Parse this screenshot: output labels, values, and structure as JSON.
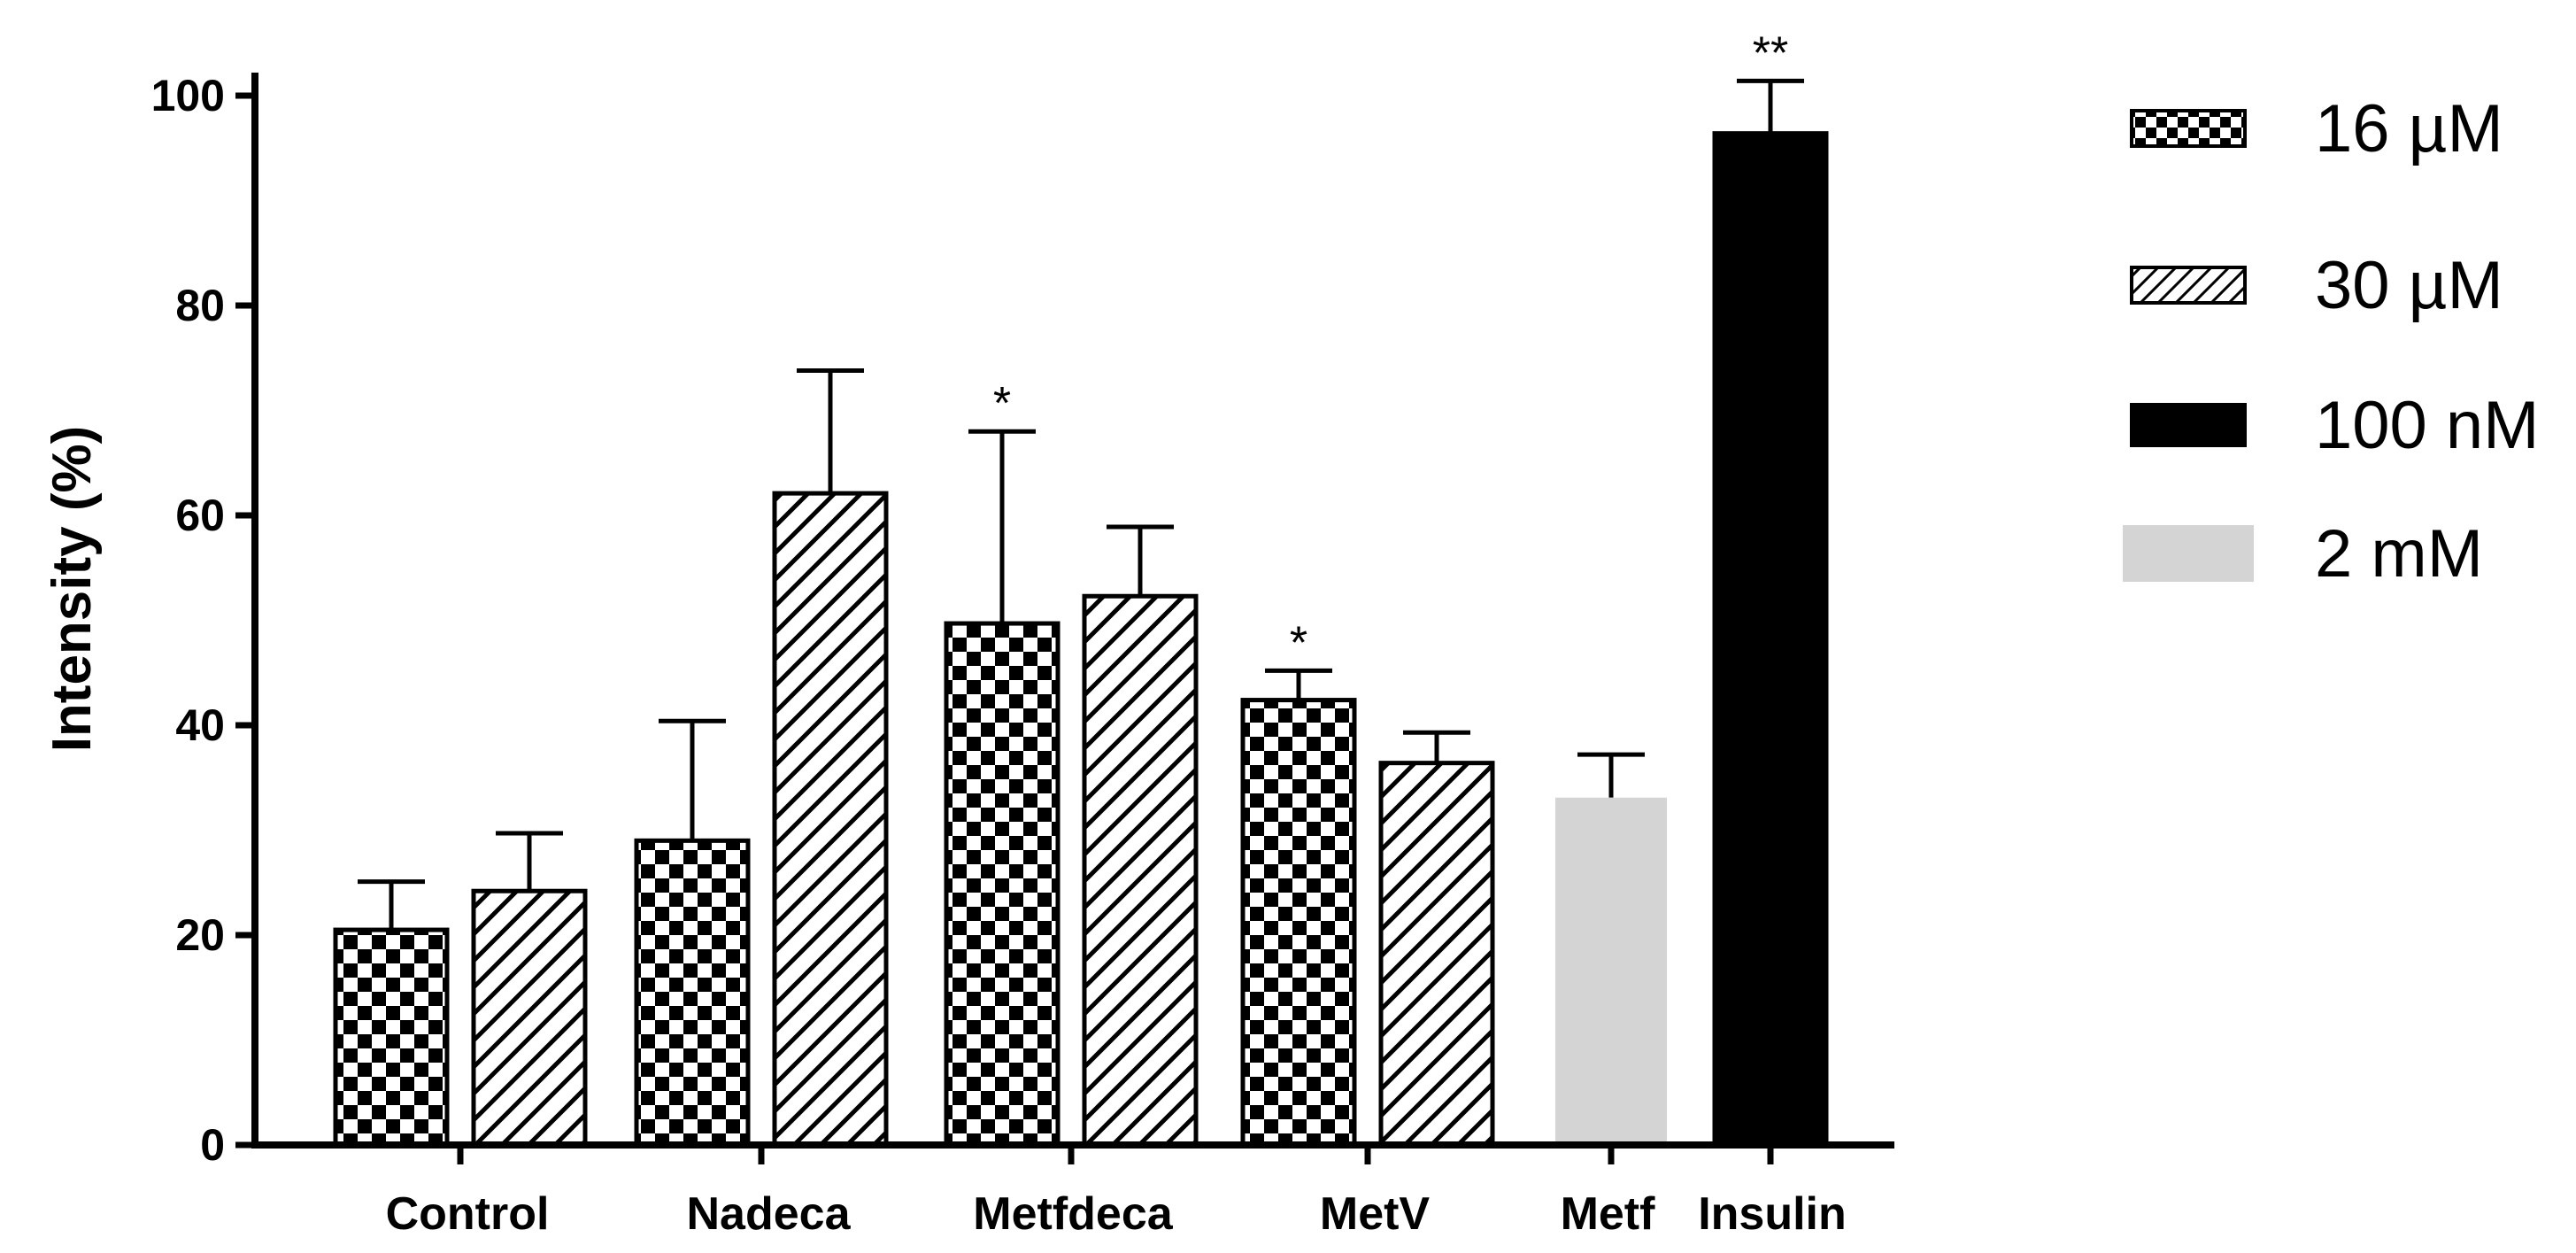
{
  "chart_data": {
    "type": "bar",
    "title": "",
    "xlabel": "",
    "ylabel": "Intensity (%)",
    "ylim": [
      0,
      100
    ],
    "yticks": [
      0,
      20,
      40,
      60,
      80,
      100
    ],
    "ytick_labels": [
      "0",
      "20",
      "40",
      "60",
      "80",
      "100"
    ],
    "grid": false,
    "legend_position": "right",
    "groups": [
      {
        "label": "Control",
        "bars": [
          {
            "series": "16 µM",
            "value": 20.5,
            "error": 4.6,
            "sig": ""
          },
          {
            "series": "30 µM",
            "value": 24.2,
            "error": 5.5,
            "sig": ""
          }
        ]
      },
      {
        "label": "Nadeca",
        "bars": [
          {
            "series": "16 µM",
            "value": 29.0,
            "error": 11.4,
            "sig": ""
          },
          {
            "series": "30 µM",
            "value": 62.1,
            "error": 11.7,
            "sig": ""
          }
        ]
      },
      {
        "label": "Metfdeca",
        "bars": [
          {
            "series": "16 µM",
            "value": 49.7,
            "error": 18.3,
            "sig": "*"
          },
          {
            "series": "30 µM",
            "value": 52.3,
            "error": 6.6,
            "sig": ""
          }
        ]
      },
      {
        "label": "MetV",
        "bars": [
          {
            "series": "16 µM",
            "value": 42.4,
            "error": 2.8,
            "sig": "*"
          },
          {
            "series": "30 µM",
            "value": 36.4,
            "error": 2.9,
            "sig": ""
          }
        ]
      },
      {
        "label": "Metf",
        "bars": [
          {
            "series": "2 mM",
            "value": 33.1,
            "error": 4.1,
            "sig": ""
          }
        ]
      },
      {
        "label": "Insulin",
        "bars": [
          {
            "series": "100 nM",
            "value": 96.4,
            "error": 5.0,
            "sig": "**"
          }
        ]
      }
    ],
    "series": [
      {
        "name": "16 µM",
        "pattern": "checker",
        "color": "#000000"
      },
      {
        "name": "30 µM",
        "pattern": "hatch",
        "color": "#000000"
      },
      {
        "name": "100 nM",
        "pattern": "solid",
        "color": "#000000"
      },
      {
        "name": "2 mM",
        "pattern": "solid",
        "color": "#d4d4d4"
      }
    ]
  }
}
